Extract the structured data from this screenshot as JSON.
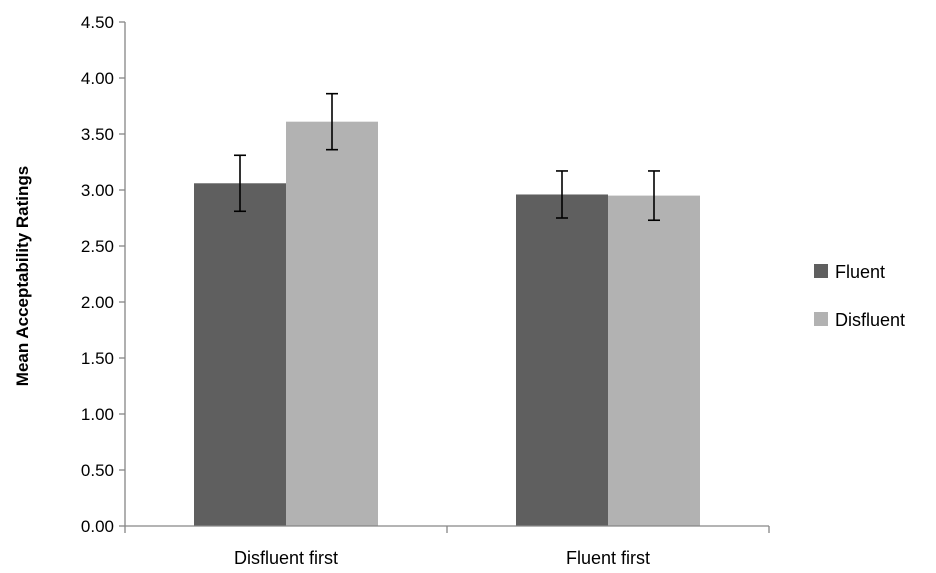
{
  "chart_data": {
    "type": "bar",
    "title": "",
    "xlabel": "",
    "ylabel": "Mean Acceptability Ratings",
    "ylim": [
      0,
      4.5
    ],
    "yticks": [
      "0.00",
      "0.50",
      "1.00",
      "1.50",
      "2.00",
      "2.50",
      "3.00",
      "3.50",
      "4.00",
      "4.50"
    ],
    "categories": [
      "Disfluent first",
      "Fluent first"
    ],
    "series": [
      {
        "name": "Fluent",
        "color": "#5f5f5f",
        "values": [
          3.06,
          2.96
        ],
        "error": [
          0.25,
          0.21
        ]
      },
      {
        "name": "Disfluent",
        "color": "#b2b2b2",
        "values": [
          3.61,
          2.95
        ],
        "error": [
          0.25,
          0.22
        ]
      }
    ],
    "grid": false,
    "legend_position": "right"
  }
}
